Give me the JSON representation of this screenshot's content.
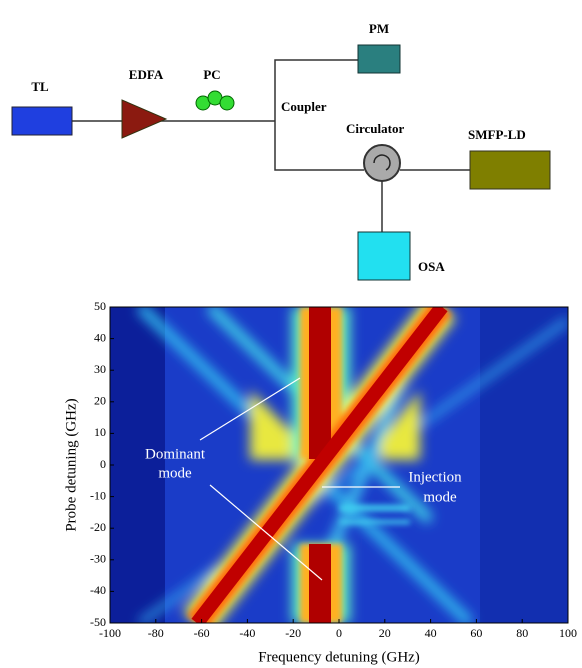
{
  "diagram": {
    "nodes": [
      {
        "label": "TL"
      },
      {
        "label": "EDFA"
      },
      {
        "label": "PC"
      },
      {
        "label": "Coupler"
      },
      {
        "label": "PM"
      },
      {
        "label": "Circulator"
      },
      {
        "label": "SMFP-LD"
      },
      {
        "label": "OSA"
      }
    ]
  },
  "chart_data": {
    "type": "heatmap",
    "xlabel": "Frequency detuning (GHz)",
    "ylabel": "Probe detuning (GHz)",
    "xlim": [
      -100,
      100
    ],
    "ylim": [
      -50,
      50
    ],
    "xticks": [
      -100,
      -80,
      -60,
      -40,
      -20,
      0,
      20,
      40,
      60,
      80,
      100
    ],
    "yticks": [
      -50,
      -40,
      -30,
      -20,
      -10,
      0,
      10,
      20,
      30,
      40,
      50
    ],
    "annotations": [
      {
        "lines": [
          "Dominant",
          "mode"
        ]
      },
      {
        "lines": [
          "Injection",
          "mode"
        ]
      }
    ]
  }
}
